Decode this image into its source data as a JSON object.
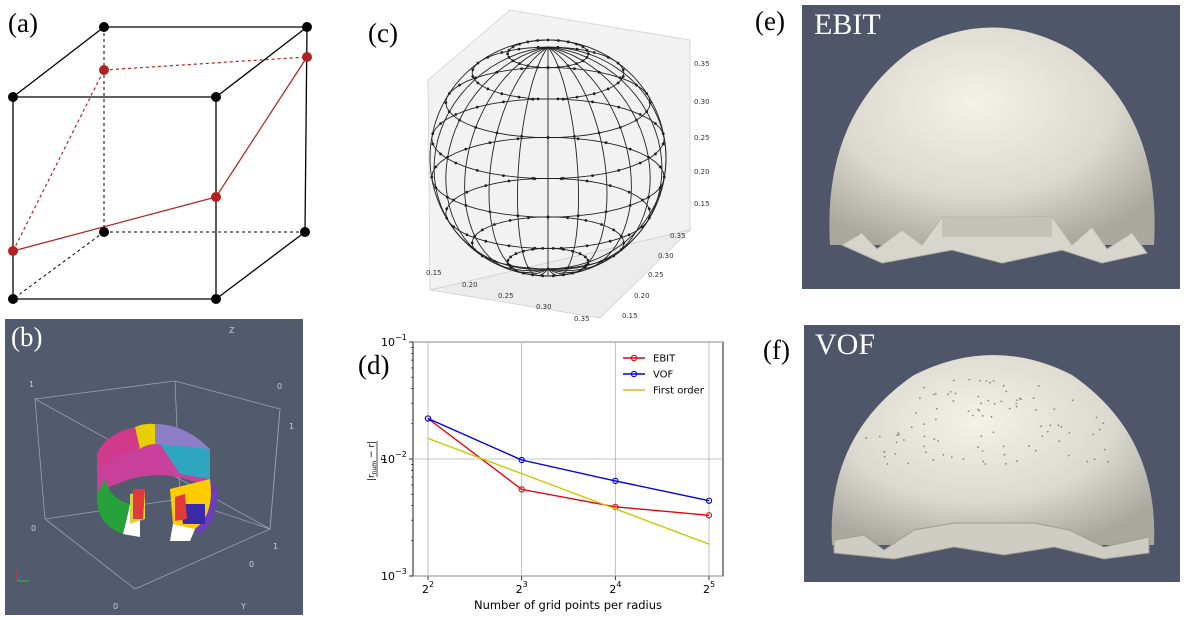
{
  "labels": {
    "a": "(a)",
    "b": "(b)",
    "c": "(c)",
    "d": "(d)",
    "e": "(e)",
    "f": "(f)"
  },
  "panel_e": {
    "title": "EBIT"
  },
  "panel_f": {
    "title": "VOF"
  },
  "panel_c": {
    "z_ticks": [
      "0.35",
      "0.30",
      "0.25",
      "0.20",
      "0.15"
    ],
    "x_ticks": [
      "0.15",
      "0.20",
      "0.25",
      "0.30",
      "0.35"
    ],
    "y_ticks": [
      "0.15",
      "0.20",
      "0.25",
      "0.30",
      "0.35"
    ]
  },
  "panel_b": {
    "axis_labels": [
      "Z",
      "1",
      "0",
      "1",
      "0",
      "1",
      "0",
      "0",
      "Y"
    ]
  },
  "chart_data": {
    "type": "line",
    "x": [
      4,
      8,
      16,
      32
    ],
    "x_ticks": [
      {
        "base": "2",
        "exp": "2"
      },
      {
        "base": "2",
        "exp": "3"
      },
      {
        "base": "2",
        "exp": "4"
      },
      {
        "base": "2",
        "exp": "5"
      }
    ],
    "xlabel": "Number of grid points per radius",
    "ylabel_top": "|r",
    "ylabel_sub": "num",
    "ylabel_rest": " − r|",
    "ylabel_denominator": "r",
    "y_log": true,
    "ylim": [
      0.001,
      0.1
    ],
    "y_ticks": [
      {
        "base": "10",
        "exp": "−3"
      },
      {
        "base": "10",
        "exp": "−2"
      },
      {
        "base": "10",
        "exp": "−1"
      }
    ],
    "grid": true,
    "legend_position": "top-right",
    "series": [
      {
        "name": "EBIT",
        "color": "#e8000b",
        "marker": "circle",
        "values": [
          0.0222,
          0.0055,
          0.0039,
          0.0033
        ]
      },
      {
        "name": "VOF",
        "color": "#0000e8",
        "marker": "circle",
        "values": [
          0.0222,
          0.0098,
          0.0065,
          0.0044
        ]
      },
      {
        "name": "First order",
        "color": "#c8c800",
        "marker": "none",
        "values": [
          0.015,
          0.0075,
          0.00375,
          0.001875
        ]
      }
    ]
  }
}
